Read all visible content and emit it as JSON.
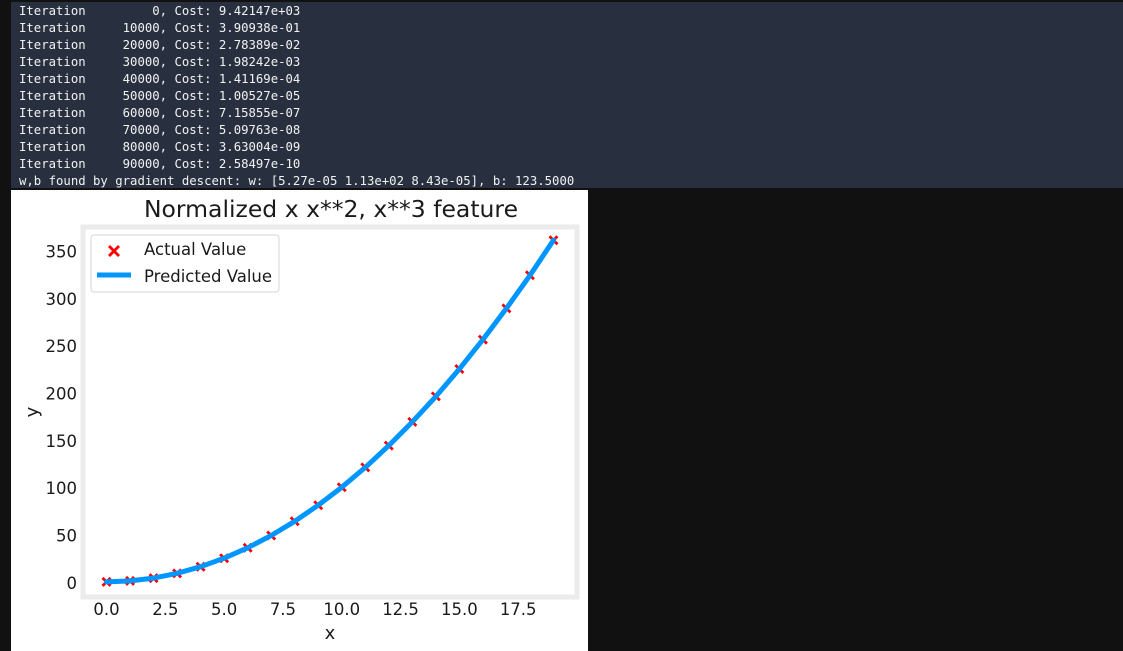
{
  "console": {
    "lines": [
      "Iteration         0, Cost: 9.42147e+03",
      "Iteration     10000, Cost: 3.90938e-01",
      "Iteration     20000, Cost: 2.78389e-02",
      "Iteration     30000, Cost: 1.98242e-03",
      "Iteration     40000, Cost: 1.41169e-04",
      "Iteration     50000, Cost: 1.00527e-05",
      "Iteration     60000, Cost: 7.15855e-07",
      "Iteration     70000, Cost: 5.09763e-08",
      "Iteration     80000, Cost: 3.63004e-09",
      "Iteration     90000, Cost: 2.58497e-10",
      "w,b found by gradient descent: w: [5.27e-05 1.13e+02 8.43e-05], b: 123.5000"
    ]
  },
  "chart_data": {
    "type": "scatter",
    "title": "Normalized x x**2, x**3 feature",
    "xlabel": "x",
    "ylabel": "y",
    "xlim": [
      -1,
      20
    ],
    "ylim": [
      -15,
      376
    ],
    "xticks": [
      "0.0",
      "2.5",
      "5.0",
      "7.5",
      "10.0",
      "12.5",
      "15.0",
      "17.5"
    ],
    "xtick_values": [
      0,
      2.5,
      5,
      7.5,
      10,
      12.5,
      15,
      17.5
    ],
    "yticks": [
      "0",
      "50",
      "100",
      "150",
      "200",
      "250",
      "300",
      "350"
    ],
    "ytick_values": [
      0,
      50,
      100,
      150,
      200,
      250,
      300,
      350
    ],
    "legend_position": "top-left",
    "series": [
      {
        "name": "Actual Value",
        "kind": "scatter",
        "marker": "X",
        "color": "#ff0000",
        "x": [
          0,
          1,
          2,
          3,
          4,
          5,
          6,
          7,
          8,
          9,
          10,
          11,
          12,
          13,
          14,
          15,
          16,
          17,
          18,
          19
        ],
        "y": [
          1,
          2,
          5,
          10,
          17,
          26,
          37,
          50,
          65,
          82,
          101,
          122,
          145,
          170,
          197,
          226,
          257,
          290,
          325,
          362
        ]
      },
      {
        "name": "Predicted Value",
        "kind": "line",
        "color": "#0096ff",
        "x": [
          0,
          1,
          2,
          3,
          4,
          5,
          6,
          7,
          8,
          9,
          10,
          11,
          12,
          13,
          14,
          15,
          16,
          17,
          18,
          19
        ],
        "y": [
          1,
          2,
          5,
          10,
          17,
          26,
          37,
          50,
          65,
          82,
          101,
          122,
          145,
          170,
          197,
          226,
          257,
          290,
          325,
          362
        ]
      }
    ]
  }
}
